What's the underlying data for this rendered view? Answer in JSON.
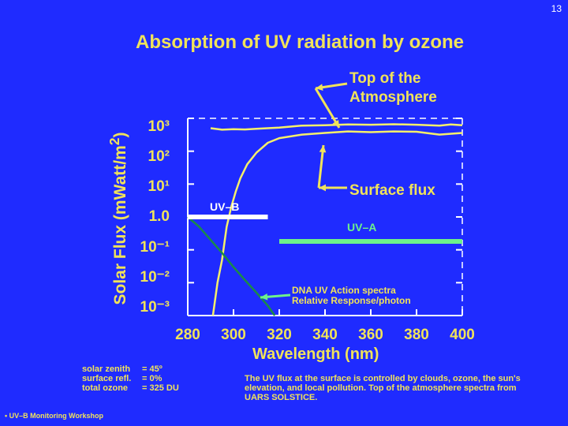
{
  "slide": {
    "page_number": "13",
    "title": "Absorption of UV radiation by ozone",
    "footer_left": "• UV–B Monitoring Workshop",
    "parameters": [
      {
        "label": "solar zenith",
        "value": "= 45º"
      },
      {
        "label": "surface refl.",
        "value": "= 0%"
      },
      {
        "label": "total ozone",
        "value": "= 325 DU"
      }
    ],
    "note": "The UV flux at the surface is controlled by clouds, ozone, the sun's elevation, and local pollution. Top of the atmosphere spectra from UARS SOLSTICE."
  },
  "chart_data": {
    "type": "line",
    "xlabel": "Wavelength (nm)",
    "ylabel": "Solar Flux (mWatt/m2)",
    "x_ticks": [
      "280",
      "300",
      "320",
      "340",
      "360",
      "380",
      "400"
    ],
    "y_ticks": [
      "10³",
      "10²",
      "10¹",
      "1.0",
      "10⁻¹",
      "10⁻²",
      "10⁻³"
    ],
    "xlim": [
      280,
      400
    ],
    "ylim": [
      0.001,
      1000
    ],
    "yscale": "log",
    "annotations": {
      "top": [
        "Top of the",
        "Atmosphere"
      ],
      "surface": "Surface flux",
      "dna": [
        "DNA UV Action spectra",
        "Relative Response/photon"
      ]
    },
    "series": [
      {
        "color": "#f5ef6a",
        "x": [
          290,
          295,
          300,
          305,
          310,
          315,
          320,
          330,
          340,
          350,
          360,
          370,
          380,
          390,
          395,
          400
        ],
        "y": [
          500,
          450,
          470,
          460,
          480,
          500,
          520,
          600,
          620,
          650,
          640,
          660,
          640,
          600,
          650,
          620
        ]
      },
      {
        "color": "#f5ef6a",
        "x": [
          291,
          293,
          295,
          297,
          299,
          301,
          303,
          306,
          310,
          315,
          320,
          330,
          340,
          350,
          360,
          370,
          380,
          390,
          400
        ],
        "y": [
          0.001,
          0.01,
          0.05,
          0.5,
          2,
          6,
          15,
          40,
          90,
          180,
          250,
          320,
          360,
          400,
          380,
          400,
          390,
          320,
          360
        ]
      },
      {
        "color": "#1a8a4a",
        "x": [
          280,
          285,
          290,
          295,
          300,
          305,
          310,
          315,
          318
        ],
        "y": [
          1,
          0.5,
          0.2,
          0.08,
          0.03,
          0.012,
          0.005,
          0.002,
          0.001
        ]
      },
      {
        "color": "#ffffff",
        "x": [
          280,
          315
        ],
        "y": [
          1,
          1
        ]
      },
      {
        "color": "#6df28a",
        "x": [
          320,
          400
        ],
        "y": [
          0.18,
          0.18
        ]
      }
    ],
    "range_labels": {
      "uvb": "UV–B",
      "uva": "UV–A"
    }
  },
  "colors": {
    "background": "#1f2bff",
    "text": "#f0e35a",
    "uva": "#6df28a",
    "dna": "#1a8a4a"
  }
}
